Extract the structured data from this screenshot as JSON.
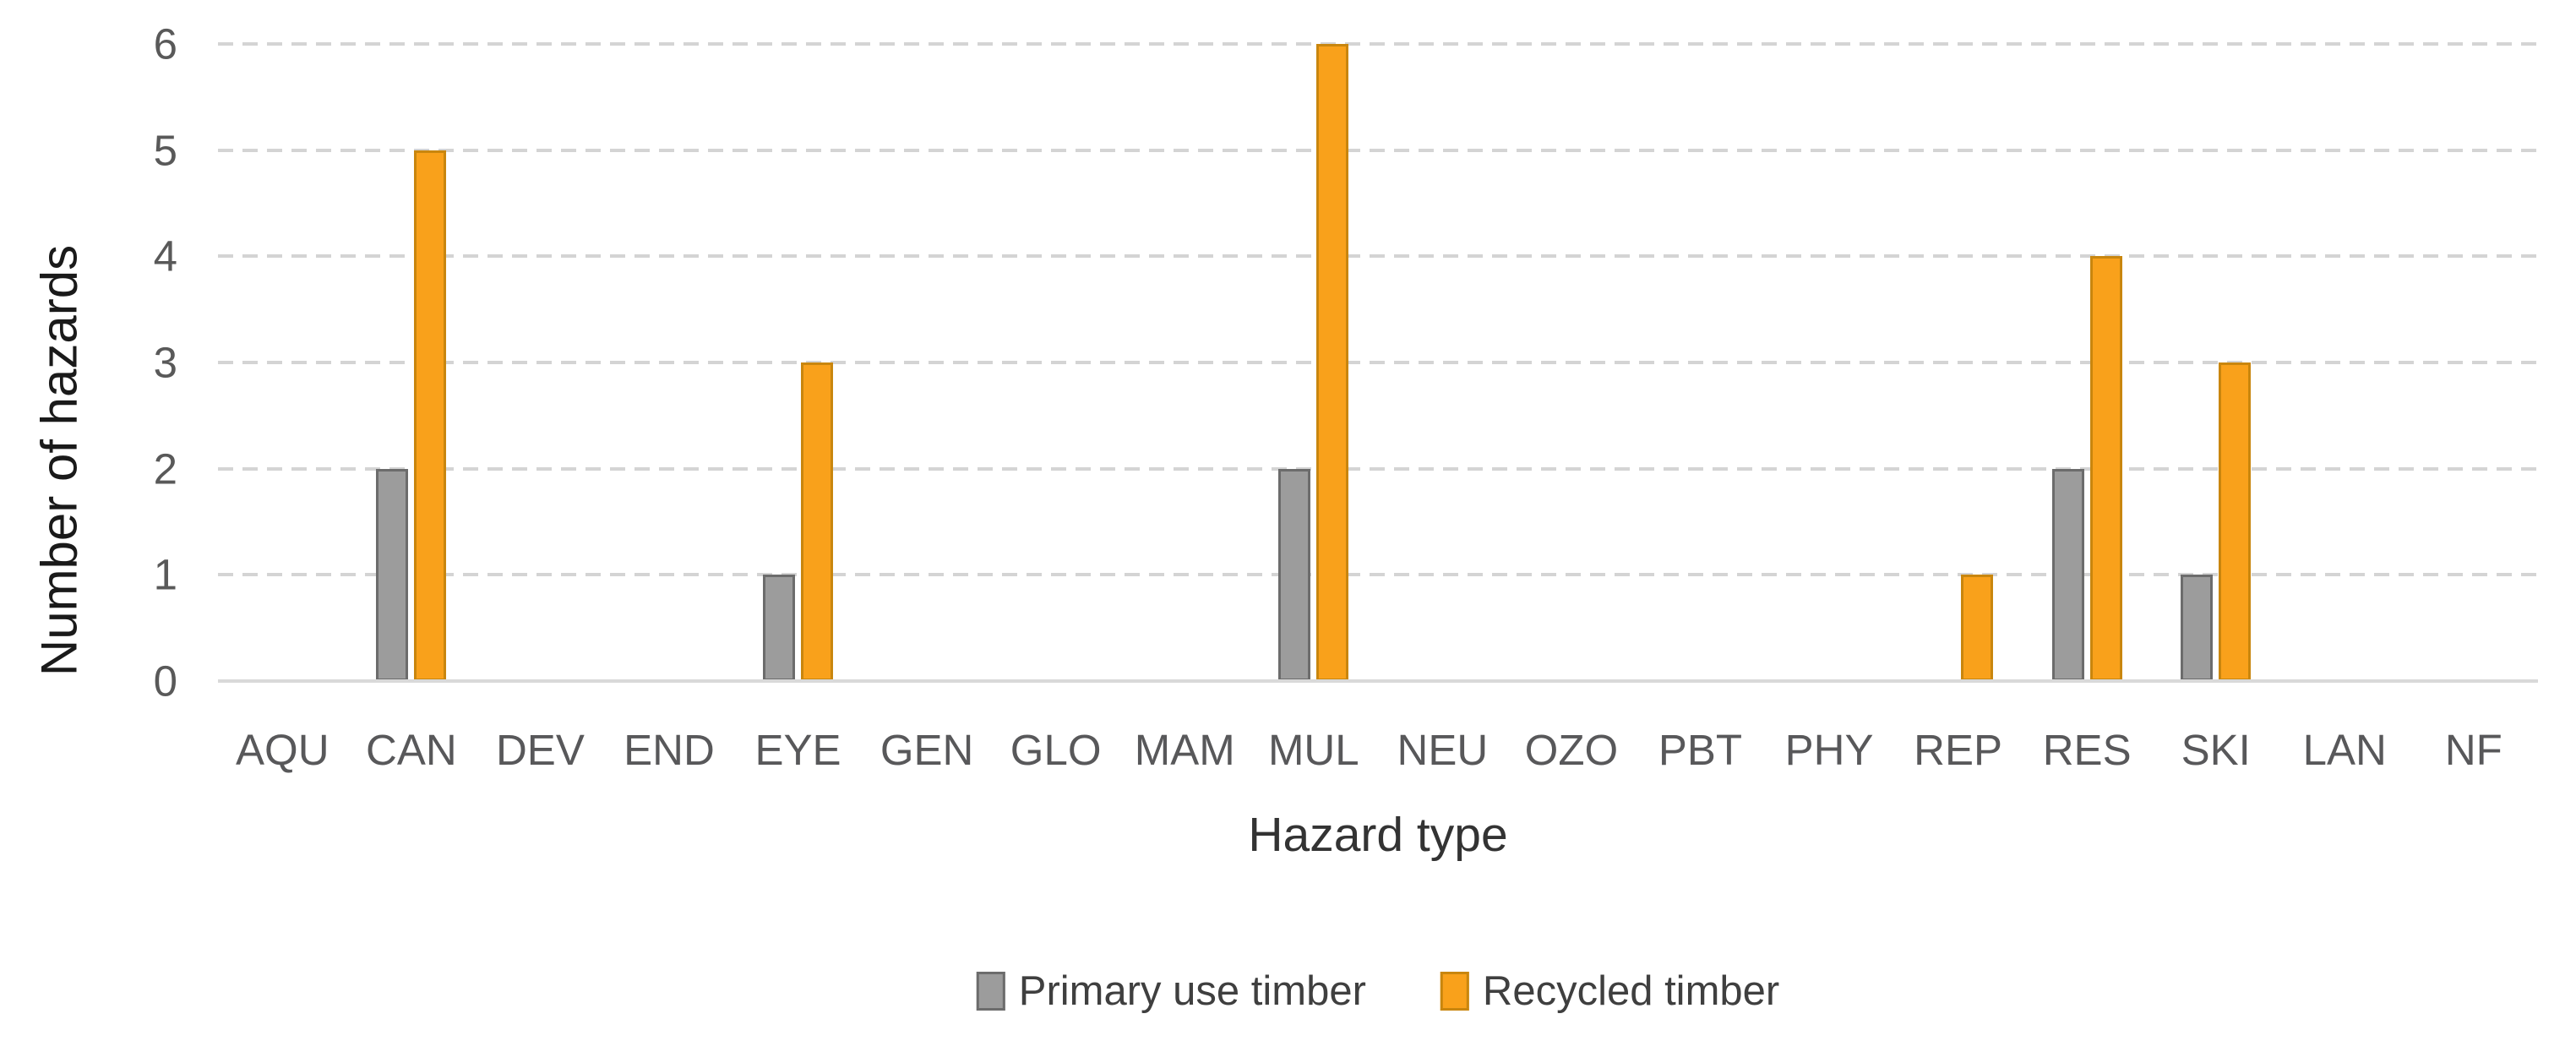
{
  "chart_data": {
    "type": "bar",
    "title": "",
    "categories": [
      "AQU",
      "CAN",
      "DEV",
      "END",
      "EYE",
      "GEN",
      "GLO",
      "MAM",
      "MUL",
      "NEU",
      "OZO",
      "PBT",
      "PHY",
      "REP",
      "RES",
      "SKI",
      "LAN",
      "NF"
    ],
    "series": [
      {
        "name": "Primary use timber",
        "color": "#9c9c9c",
        "border_color": "#6c6c6c",
        "values": [
          0,
          2,
          0,
          0,
          1,
          0,
          0,
          0,
          2,
          0,
          0,
          0,
          0,
          0,
          2,
          1,
          0,
          0
        ]
      },
      {
        "name": "Recycled timber",
        "color": "#f9a11b",
        "border_color": "#c9860e",
        "values": [
          0,
          5,
          0,
          0,
          3,
          0,
          0,
          0,
          6,
          0,
          0,
          0,
          0,
          1,
          4,
          3,
          0,
          0
        ]
      }
    ],
    "xlabel": "Hazard type",
    "ylabel": "Number of hazards",
    "ylim": [
      0,
      6
    ],
    "yticks": [
      0,
      1,
      2,
      3,
      4,
      5,
      6
    ],
    "grid": "horizontal-dashed",
    "gridline_color": "#d4d4d4",
    "axis_line_color": "#d9d9d9",
    "legend_position": "bottom-center"
  }
}
